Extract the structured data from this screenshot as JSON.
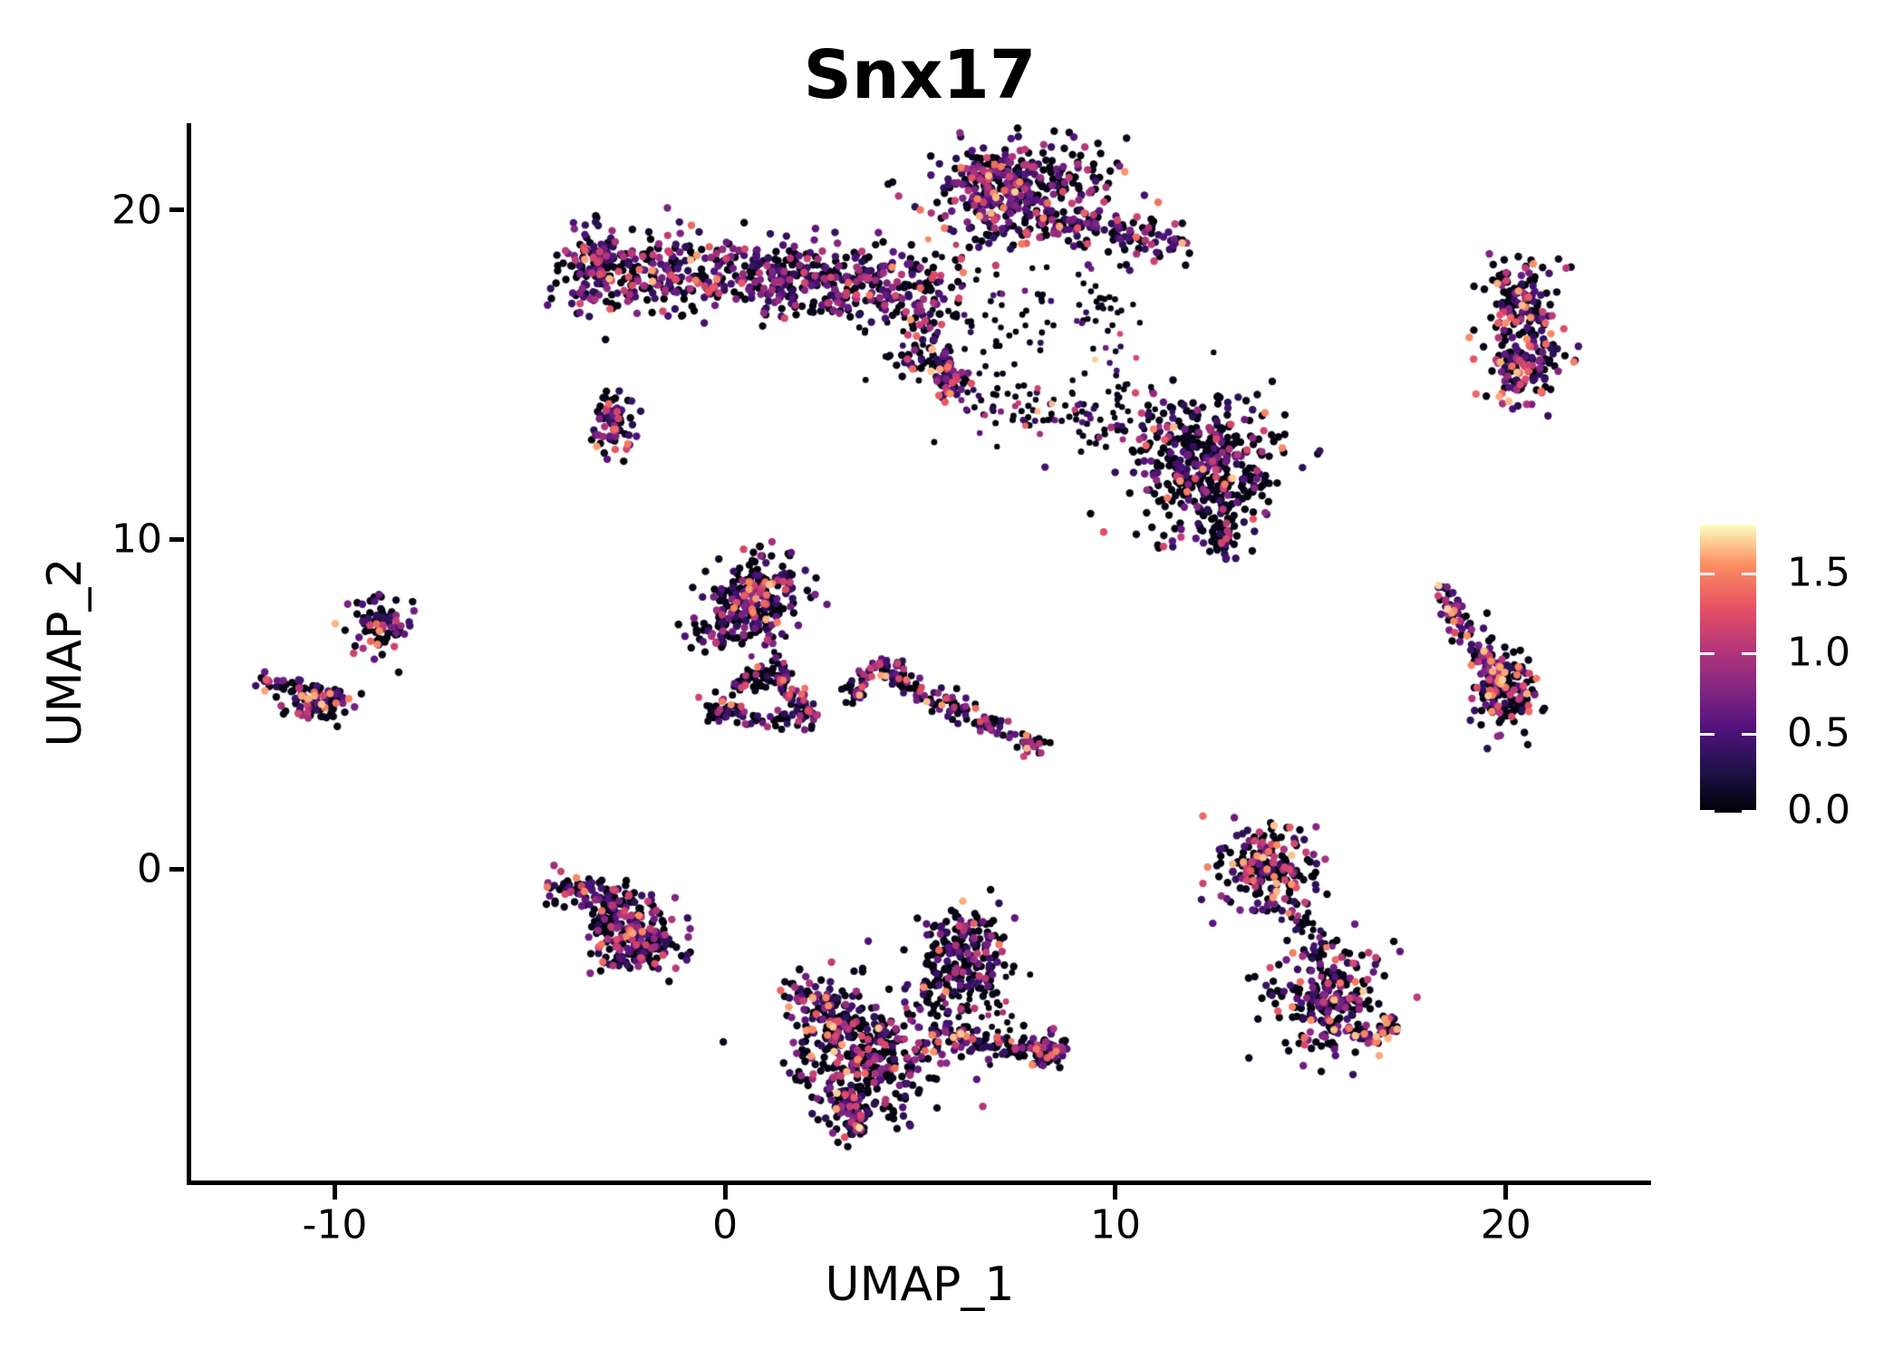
{
  "chart_data": {
    "type": "scatter",
    "title": "Snx17",
    "xlabel": "UMAP_1",
    "ylabel": "UMAP_2",
    "xlim": [
      -13.7,
      23.72
    ],
    "ylim": [
      -9.45,
      22.63
    ],
    "x_ticks": [
      -10,
      0,
      10,
      20
    ],
    "y_ticks": [
      0,
      10,
      20
    ],
    "grid": false,
    "background": "#ffffff",
    "point_radius_px": 4.2,
    "colorbar": {
      "position": "right",
      "ticks": [
        "0.0",
        "0.5",
        "1.0",
        "1.5"
      ],
      "tick_values": [
        0.0,
        0.5,
        1.0,
        1.5
      ],
      "range": [
        0.0,
        1.8
      ],
      "colormap": "magma",
      "stops": [
        [
          0.0,
          "#000004"
        ],
        [
          0.14,
          "#1d1147"
        ],
        [
          0.29,
          "#51127c"
        ],
        [
          0.43,
          "#822681"
        ],
        [
          0.57,
          "#b63679"
        ],
        [
          0.71,
          "#e65164"
        ],
        [
          0.86,
          "#fb8d61"
        ],
        [
          1.0,
          "#fcfdbf"
        ]
      ]
    },
    "clusters": [
      {
        "id": "top-band",
        "kind": "stroke",
        "pts": [
          [
            -3.6,
            18.4
          ],
          [
            -1.4,
            18.15
          ],
          [
            0.8,
            18.0
          ],
          [
            3.0,
            17.8
          ],
          [
            5.0,
            17.55
          ]
        ],
        "jitter": 0.6,
        "n": 620,
        "mix": {
          "zero": 0.44,
          "hot": 0.03
        }
      },
      {
        "id": "top-band-left-cap",
        "kind": "blob",
        "cx": -3.3,
        "cy": 18.1,
        "sx": 0.45,
        "sy": 0.7,
        "n": 80,
        "mix": {
          "zero": 0.38,
          "hot": 0.04
        }
      },
      {
        "id": "top-blob",
        "kind": "blob",
        "cx": 7.6,
        "cy": 20.4,
        "sx": 1.1,
        "sy": 0.8,
        "n": 360,
        "mix": {
          "zero": 0.46,
          "hot": 0.05
        }
      },
      {
        "id": "top-blob-crest",
        "kind": "blob",
        "cx": 6.9,
        "cy": 21.1,
        "sx": 0.55,
        "sy": 0.4,
        "n": 70,
        "mix": {
          "zero": 0.3,
          "hot": 0.07
        }
      },
      {
        "id": "top-arm-right",
        "kind": "stroke",
        "pts": [
          [
            8.9,
            19.8
          ],
          [
            10.3,
            19.3
          ],
          [
            11.8,
            18.8
          ]
        ],
        "jitter": 0.38,
        "n": 95,
        "mix": {
          "zero": 0.5,
          "hot": 0.06
        }
      },
      {
        "id": "top-funnel-sparse",
        "kind": "blob",
        "cx": 6.4,
        "cy": 16.3,
        "sx": 1.35,
        "sy": 1.25,
        "n": 85,
        "r": 3.4,
        "mix": {
          "zero": 0.8,
          "hot": 0.01
        }
      },
      {
        "id": "top-v-left",
        "kind": "stroke",
        "pts": [
          [
            4.55,
            15.0
          ],
          [
            5.0,
            16.1
          ],
          [
            5.6,
            17.1
          ]
        ],
        "jitter": 0.3,
        "n": 55,
        "mix": {
          "zero": 0.55,
          "hot": 0.03
        }
      },
      {
        "id": "top-beak",
        "kind": "stroke",
        "pts": [
          [
            5.5,
            15.5
          ],
          [
            5.85,
            14.55
          ]
        ],
        "jitter": 0.2,
        "n": 65,
        "mix": {
          "zero": 0.3,
          "hot": 0.1
        }
      },
      {
        "id": "top-beak-tip-hot",
        "kind": "blob",
        "cx": 5.6,
        "cy": 14.4,
        "sx": 0.12,
        "sy": 0.12,
        "n": 7,
        "mix": {
          "zero": 0.05,
          "hot": 0.75
        }
      },
      {
        "id": "trail-band-to-right",
        "kind": "stroke",
        "pts": [
          [
            6.3,
            14.3
          ],
          [
            7.5,
            13.7
          ],
          [
            8.7,
            13.9
          ],
          [
            9.7,
            13.3
          ]
        ],
        "jitter": 0.35,
        "n": 70,
        "r": 3.5,
        "mix": {
          "zero": 0.62,
          "hot": 0.05
        }
      },
      {
        "id": "trail-blob-down",
        "kind": "stroke",
        "pts": [
          [
            9.2,
            17.9
          ],
          [
            9.8,
            16.3
          ],
          [
            10.3,
            14.7
          ],
          [
            10.9,
            13.5
          ]
        ],
        "jitter": 0.4,
        "n": 50,
        "r": 3.3,
        "mix": {
          "zero": 0.78,
          "hot": 0.02
        }
      },
      {
        "id": "midfield-sparse",
        "kind": "blob",
        "cx": 8.7,
        "cy": 15.4,
        "sx": 1.7,
        "sy": 1.5,
        "n": 30,
        "r": 3.2,
        "mix": {
          "zero": 0.87,
          "hot": 0.0
        }
      },
      {
        "id": "right-mid",
        "kind": "blob",
        "cx": 12.3,
        "cy": 12.15,
        "sx": 1.0,
        "sy": 1.05,
        "n": 430,
        "mix": {
          "zero": 0.63,
          "hot": 0.035
        }
      },
      {
        "id": "right-mid-tail",
        "kind": "stroke",
        "pts": [
          [
            12.5,
            10.4
          ],
          [
            12.9,
            9.7
          ]
        ],
        "jitter": 0.28,
        "n": 35,
        "mix": {
          "zero": 0.6,
          "hot": 0.03
        }
      },
      {
        "id": "small-center-north",
        "kind": "blob",
        "cx": -2.85,
        "cy": 13.4,
        "sx": 0.3,
        "sy": 0.5,
        "n": 70,
        "mix": {
          "zero": 0.42,
          "hot": 0.09
        }
      },
      {
        "id": "left-blob",
        "kind": "blob",
        "cx": -8.75,
        "cy": 7.4,
        "sx": 0.36,
        "sy": 0.42,
        "n": 85,
        "mix": {
          "zero": 0.55,
          "hot": 0.04
        }
      },
      {
        "id": "farleft-streak",
        "kind": "stroke",
        "pts": [
          [
            -11.95,
            5.85
          ],
          [
            -11.0,
            5.5
          ],
          [
            -10.15,
            5.25
          ],
          [
            -9.7,
            5.1
          ]
        ],
        "jitter": 0.14,
        "n": 55,
        "mix": {
          "zero": 0.55,
          "hot": 0.08
        }
      },
      {
        "id": "farleft-crescent",
        "kind": "blob",
        "cx": -10.35,
        "cy": 4.95,
        "sx": 0.5,
        "sy": 0.26,
        "n": 55,
        "mix": {
          "zero": 0.6,
          "hot": 0.05
        }
      },
      {
        "id": "center-blob",
        "kind": "blob",
        "cx": 0.75,
        "cy": 8.2,
        "sx": 0.6,
        "sy": 0.8,
        "rot": -32,
        "n": 210,
        "mix": {
          "zero": 0.5,
          "hot": 0.035
        }
      },
      {
        "id": "center-blob-taper",
        "kind": "stroke",
        "pts": [
          [
            -0.55,
            6.85
          ],
          [
            0.15,
            7.6
          ],
          [
            0.8,
            8.2
          ]
        ],
        "jitter": 0.3,
        "n": 60,
        "mix": {
          "zero": 0.5,
          "hot": 0.03
        }
      },
      {
        "id": "center-below-dots",
        "kind": "blob",
        "cx": 1.1,
        "cy": 6.3,
        "sx": 0.3,
        "sy": 0.35,
        "n": 9,
        "r": 3.4,
        "mix": {
          "zero": 0.85,
          "hot": 0
        }
      },
      {
        "id": "mtn-left-up",
        "kind": "stroke",
        "pts": [
          [
            -0.35,
            4.95
          ],
          [
            0.45,
            5.5
          ],
          [
            1.25,
            6.0
          ]
        ],
        "jitter": 0.17,
        "n": 55,
        "r": 3.9,
        "mix": {
          "zero": 0.6,
          "hot": 0.02
        }
      },
      {
        "id": "mtn-left-down",
        "kind": "stroke",
        "pts": [
          [
            1.25,
            6.0
          ],
          [
            1.8,
            5.35
          ],
          [
            2.3,
            4.7
          ]
        ],
        "jitter": 0.17,
        "n": 55,
        "r": 3.9,
        "mix": {
          "zero": 0.42,
          "hot": 0.04
        }
      },
      {
        "id": "mtn-bottom",
        "kind": "stroke",
        "pts": [
          [
            -0.4,
            4.8
          ],
          [
            0.9,
            4.6
          ],
          [
            2.25,
            4.55
          ]
        ],
        "jitter": 0.14,
        "n": 70,
        "r": 3.9,
        "mix": {
          "zero": 0.6,
          "hot": 0.02
        }
      },
      {
        "id": "mtn-peak-up",
        "kind": "stroke",
        "pts": [
          [
            3.05,
            5.15
          ],
          [
            3.7,
            5.85
          ],
          [
            4.15,
            6.3
          ]
        ],
        "jitter": 0.15,
        "n": 45,
        "r": 3.9,
        "mix": {
          "zero": 0.5,
          "hot": 0.05
        }
      },
      {
        "id": "mtn-peak-down",
        "kind": "stroke",
        "pts": [
          [
            4.15,
            6.3
          ],
          [
            4.55,
            5.8
          ],
          [
            4.95,
            5.35
          ]
        ],
        "jitter": 0.15,
        "n": 40,
        "r": 3.9,
        "mix": {
          "zero": 0.45,
          "hot": 0.03
        }
      },
      {
        "id": "mtn-tail",
        "kind": "stroke",
        "pts": [
          [
            4.95,
            5.35
          ],
          [
            6.0,
            4.85
          ],
          [
            7.0,
            4.3
          ],
          [
            8.15,
            3.65
          ]
        ],
        "jitter": 0.18,
        "n": 95,
        "r": 3.9,
        "mix": {
          "zero": 0.48,
          "hot": 0.05
        }
      },
      {
        "id": "bl-arm-top",
        "kind": "stroke",
        "pts": [
          [
            -4.45,
            -0.55
          ],
          [
            -3.4,
            -0.78
          ],
          [
            -2.5,
            -1.0
          ],
          [
            -1.88,
            -1.3
          ]
        ],
        "jitter": 0.28,
        "n": 120,
        "mix": {
          "zero": 0.55,
          "hot": 0.05
        }
      },
      {
        "id": "bl-diag",
        "kind": "stroke",
        "pts": [
          [
            -3.15,
            -1.3
          ],
          [
            -2.7,
            -1.9
          ]
        ],
        "jitter": 0.25,
        "n": 40,
        "mix": {
          "zero": 0.6,
          "hot": 0.03
        }
      },
      {
        "id": "bl-blob",
        "kind": "blob",
        "cx": -2.05,
        "cy": -2.3,
        "sx": 0.6,
        "sy": 0.4,
        "n": 140,
        "mix": {
          "zero": 0.5,
          "hot": 0.07
        }
      },
      {
        "id": "bc-upper",
        "kind": "blob",
        "cx": 6.1,
        "cy": -2.7,
        "sx": 0.55,
        "sy": 0.75,
        "n": 200,
        "mix": {
          "zero": 0.56,
          "hot": 0.04
        }
      },
      {
        "id": "bc-bridge",
        "kind": "stroke",
        "pts": [
          [
            5.7,
            -3.9
          ],
          [
            5.35,
            -4.6
          ]
        ],
        "jitter": 0.3,
        "n": 25,
        "r": 3.5,
        "mix": {
          "zero": 0.7,
          "hot": 0.02
        }
      },
      {
        "id": "bc-main",
        "kind": "blob",
        "cx": 3.6,
        "cy": -5.6,
        "sx": 0.95,
        "sy": 1.0,
        "n": 380,
        "mix": {
          "zero": 0.52,
          "hot": 0.05
        }
      },
      {
        "id": "bc-left-wing",
        "kind": "stroke",
        "pts": [
          [
            1.8,
            -3.6
          ],
          [
            2.6,
            -4.4
          ],
          [
            3.2,
            -5.1
          ]
        ],
        "jitter": 0.3,
        "n": 90,
        "mix": {
          "zero": 0.45,
          "hot": 0.06
        }
      },
      {
        "id": "bc-bottom-tip",
        "kind": "stroke",
        "pts": [
          [
            3.1,
            -6.9
          ],
          [
            3.4,
            -7.95
          ]
        ],
        "jitter": 0.25,
        "n": 60,
        "mix": {
          "zero": 0.5,
          "hot": 0.08
        }
      },
      {
        "id": "bc-right-arm",
        "kind": "stroke",
        "pts": [
          [
            5.5,
            -5.0
          ],
          [
            6.6,
            -5.2
          ],
          [
            7.6,
            -5.45
          ],
          [
            8.55,
            -5.6
          ]
        ],
        "jitter": 0.22,
        "n": 115,
        "mix": {
          "zero": 0.5,
          "hot": 0.04
        }
      },
      {
        "id": "bc-arm-end",
        "kind": "blob",
        "cx": 8.3,
        "cy": -5.45,
        "sx": 0.32,
        "sy": 0.27,
        "n": 30,
        "mix": {
          "zero": 0.3,
          "hot": 0.06
        }
      },
      {
        "id": "bc-sparse-mid",
        "kind": "blob",
        "cx": 6.6,
        "cy": -4.3,
        "sx": 0.7,
        "sy": 0.6,
        "n": 40,
        "r": 3.4,
        "mix": {
          "zero": 0.82,
          "hot": 0.01
        }
      },
      {
        "id": "br-top",
        "kind": "blob",
        "cx": 13.85,
        "cy": 0.0,
        "sx": 0.62,
        "sy": 0.7,
        "n": 210,
        "mix": {
          "zero": 0.5,
          "hot": 0.09
        }
      },
      {
        "id": "br-bridge",
        "kind": "stroke",
        "pts": [
          [
            14.55,
            -1.3
          ],
          [
            15.0,
            -2.2
          ],
          [
            15.35,
            -2.9
          ]
        ],
        "jitter": 0.2,
        "n": 35,
        "r": 3.6,
        "mix": {
          "zero": 0.55,
          "hot": 0.05
        }
      },
      {
        "id": "br-bottom",
        "kind": "blob",
        "cx": 15.45,
        "cy": -3.9,
        "sx": 0.72,
        "sy": 0.85,
        "n": 240,
        "mix": {
          "zero": 0.55,
          "hot": 0.07
        }
      },
      {
        "id": "br-hook",
        "kind": "stroke",
        "pts": [
          [
            16.1,
            -4.95
          ],
          [
            16.9,
            -5.2
          ],
          [
            17.15,
            -4.7
          ]
        ],
        "jitter": 0.18,
        "n": 45,
        "mix": {
          "zero": 0.42,
          "hot": 0.12
        }
      },
      {
        "id": "rt-top",
        "kind": "blob",
        "cx": 20.4,
        "cy": 17.2,
        "sx": 0.46,
        "sy": 0.6,
        "n": 125,
        "mix": {
          "zero": 0.52,
          "hot": 0.08
        }
      },
      {
        "id": "rt-bottom",
        "kind": "blob",
        "cx": 20.5,
        "cy": 15.3,
        "sx": 0.5,
        "sy": 0.68,
        "n": 135,
        "mix": {
          "zero": 0.55,
          "hot": 0.07
        }
      },
      {
        "id": "rd-streak",
        "kind": "stroke",
        "pts": [
          [
            18.3,
            8.55
          ],
          [
            18.75,
            7.7
          ],
          [
            19.35,
            6.65
          ],
          [
            19.75,
            6.05
          ]
        ],
        "jitter": 0.16,
        "n": 80,
        "mix": {
          "zero": 0.42,
          "hot": 0.1
        }
      },
      {
        "id": "rd-blob",
        "kind": "blob",
        "cx": 20.0,
        "cy": 5.25,
        "sx": 0.44,
        "sy": 0.6,
        "n": 135,
        "mix": {
          "zero": 0.6,
          "hot": 0.07
        }
      },
      {
        "id": "rd-blob-hotband",
        "kind": "blob",
        "cx": 19.8,
        "cy": 5.95,
        "sx": 0.32,
        "sy": 0.22,
        "n": 25,
        "mix": {
          "zero": 0.15,
          "hot": 0.3
        }
      }
    ],
    "extra_points": [
      {
        "x": 3.44,
        "y": -7.85,
        "v": 1.74
      },
      {
        "x": 2.08,
        "y": -4.9,
        "v": 1.58
      },
      {
        "x": 18.28,
        "y": 8.6,
        "v": 1.7
      },
      {
        "x": -8.93,
        "y": 7.44,
        "v": 1.38
      },
      {
        "x": 6.1,
        "y": 18.1,
        "v": 1.5
      },
      {
        "x": 20.9,
        "y": 14.5,
        "v": 1.42
      },
      {
        "x": 9.2,
        "y": 19.9,
        "v": 1.35
      },
      {
        "x": 5.0,
        "y": 20.0,
        "v": 1.45
      }
    ]
  }
}
